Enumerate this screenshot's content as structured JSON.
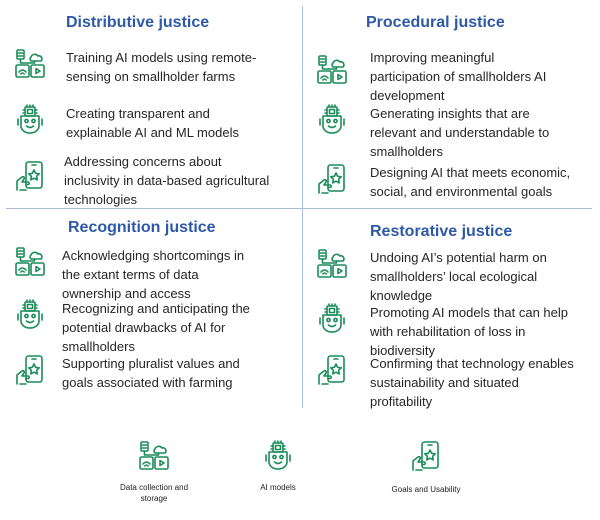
{
  "icons": {
    "data": "data-storage-icon",
    "ai": "ai-robot-icon",
    "goals": "goals-hand-phone-icon"
  },
  "colors": {
    "heading": "#2e59a6",
    "icon": "#1a8c5a",
    "divider": "#a9bedb",
    "text": "#262626"
  },
  "quadrants": {
    "distributive": {
      "title": "Distributive justice",
      "items": [
        "Training AI models using remote-\nsensing on smallholder farms",
        "Creating transparent and\nexplainable AI and ML models",
        "Addressing concerns about\ninclusivity in data-based agricultural\ntechnologies"
      ]
    },
    "procedural": {
      "title": "Procedural justice",
      "items": [
        "Improving meaningful\nparticipation of smallholders AI\ndevelopment",
        "Generating insights that are\nrelevant and understandable to\nsmallholders",
        "Designing AI that meets economic,\nsocial, and environmental goals"
      ]
    },
    "recognition": {
      "title": "Recognition justice",
      "items": [
        "Acknowledging shortcomings  in\nthe extant terms of data\nownership and access",
        "Recognizing and anticipating the\npotential drawbacks of AI for\nsmallholders",
        "Supporting pluralist values and\ngoals associated with farming"
      ]
    },
    "restorative": {
      "title": "Restorative justice",
      "items": [
        "Undoing AI’s potential harm on\nsmallholders’ local ecological\nknowledge",
        "Promoting AI models that can help\nwith rehabilitation of loss in\nbiodiversity",
        "Confirming that technology enables\nsustainability and situated\nprofitability"
      ]
    }
  },
  "legend": {
    "data": "Data collection and\nstorage",
    "ai": "AI models",
    "goals": "Goals and Usability"
  }
}
